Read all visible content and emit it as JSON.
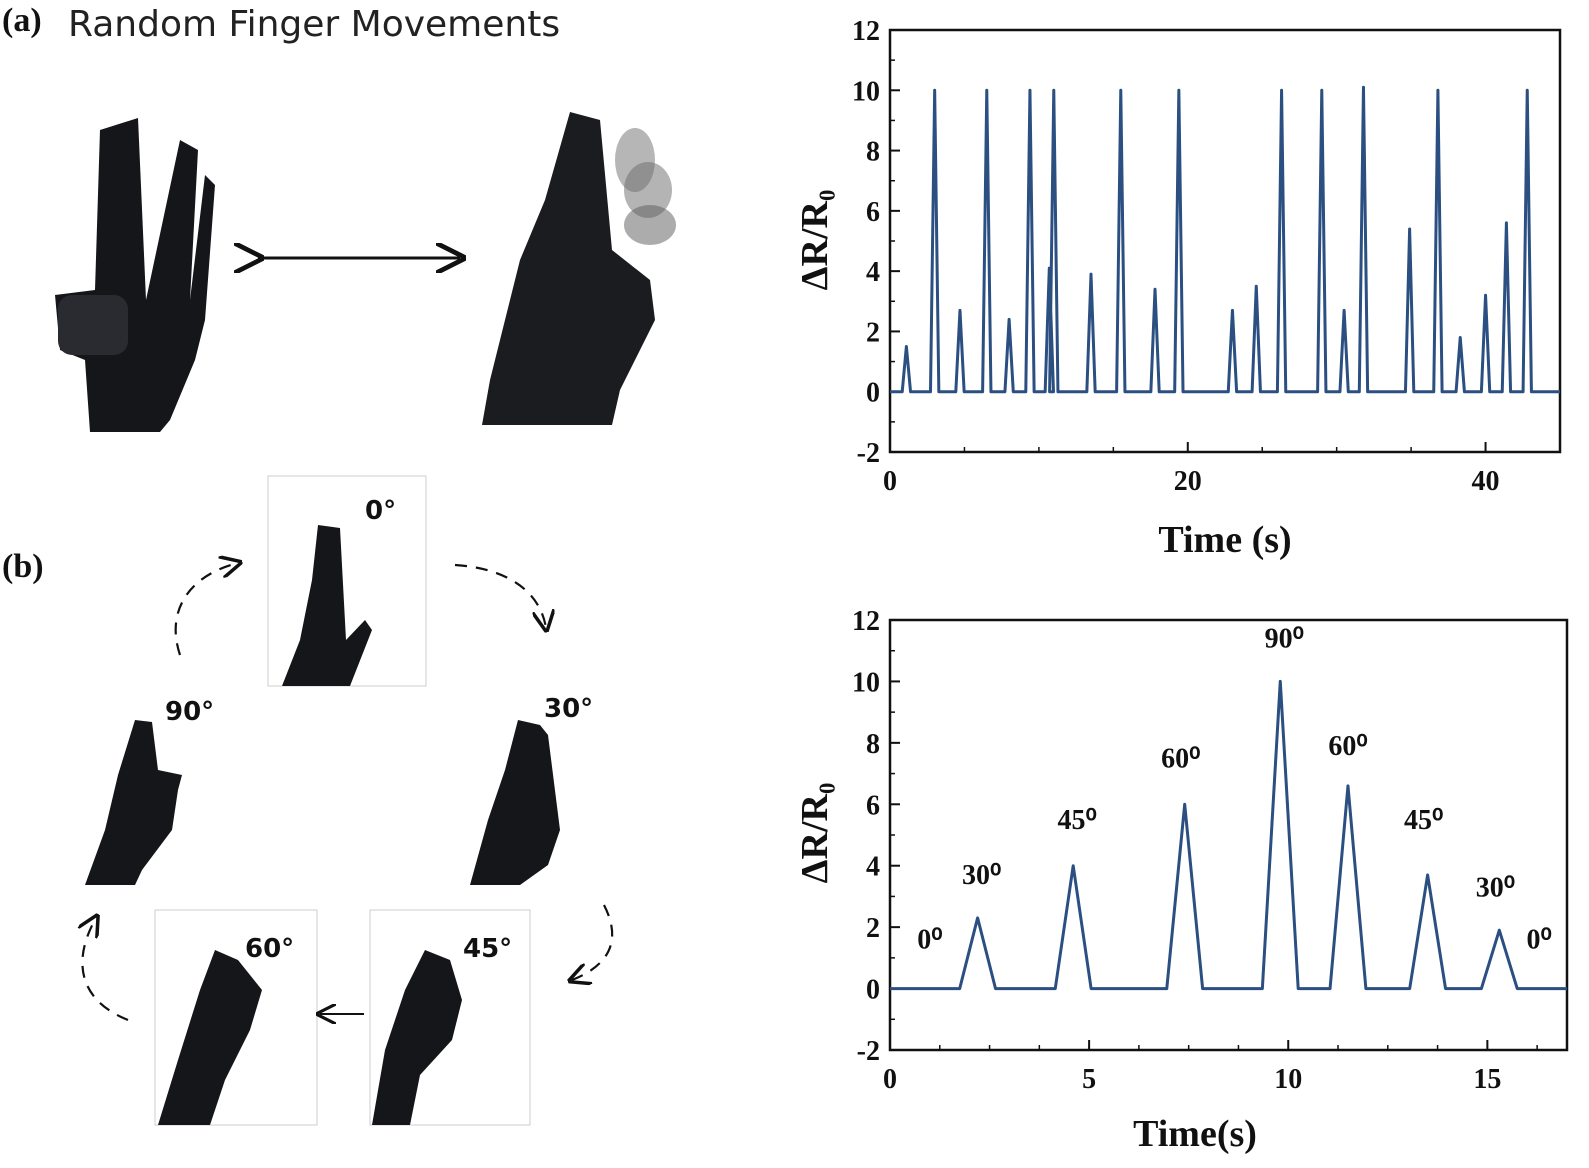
{
  "panel_a": {
    "label": "(a)",
    "title": "Random Finger Movements"
  },
  "panel_b": {
    "label": "(b)",
    "angles": [
      "0°",
      "30°",
      "45°",
      "60°",
      "90°"
    ]
  },
  "colors": {
    "line": "#2b4f81",
    "axis": "#111111",
    "glove": "#15161a"
  },
  "chart_data": [
    {
      "type": "line",
      "title": "",
      "xlabel": "Time (s)",
      "ylabel": "ΔR/R₀",
      "xlim": [
        0,
        45
      ],
      "ylim": [
        -2,
        12
      ],
      "xticks": [
        "0",
        "20",
        "40"
      ],
      "yticks": [
        "-2",
        "0",
        "2",
        "4",
        "6",
        "8",
        "10",
        "12"
      ],
      "series": [
        {
          "name": "",
          "peaks_t": [
            1.1,
            3.0,
            4.7,
            6.5,
            8.0,
            9.4,
            10.7,
            11.0,
            13.5,
            15.5,
            17.8,
            19.4,
            23.0,
            24.6,
            26.3,
            29.0,
            30.5,
            31.8,
            34.9,
            36.8,
            38.3,
            40.0,
            41.4,
            42.8
          ],
          "peaks_v": [
            1.5,
            10.0,
            2.7,
            10.0,
            2.4,
            10.0,
            4.1,
            10.0,
            3.9,
            10.0,
            3.4,
            10.0,
            2.7,
            3.5,
            10.0,
            10.0,
            2.7,
            10.1,
            5.4,
            10.0,
            1.8,
            3.2,
            5.6,
            10.0
          ],
          "baseline": 0
        }
      ]
    },
    {
      "type": "line",
      "title": "",
      "xlabel": "Time(s)",
      "ylabel": "ΔR/R₀",
      "xlim": [
        0,
        17
      ],
      "ylim": [
        -2,
        12
      ],
      "xticks": [
        "0",
        "5",
        "10",
        "15"
      ],
      "yticks": [
        "-2",
        "0",
        "2",
        "4",
        "6",
        "8",
        "10",
        "12"
      ],
      "series": [
        {
          "name": "",
          "peaks_t": [
            2.2,
            4.6,
            7.4,
            9.8,
            11.5,
            13.5,
            15.3
          ],
          "peaks_v": [
            2.3,
            4.0,
            6.0,
            10.0,
            6.6,
            3.7,
            1.9
          ],
          "baseline": 0
        }
      ],
      "annotations": [
        {
          "text": "0⁰",
          "x": 1.0,
          "y": 1.3
        },
        {
          "text": "30⁰",
          "x": 2.3,
          "y": 3.4
        },
        {
          "text": "45⁰",
          "x": 4.7,
          "y": 5.2
        },
        {
          "text": "60⁰",
          "x": 7.3,
          "y": 7.2
        },
        {
          "text": "90⁰",
          "x": 9.9,
          "y": 11.1
        },
        {
          "text": "60⁰",
          "x": 11.5,
          "y": 7.6
        },
        {
          "text": "45⁰",
          "x": 13.4,
          "y": 5.2
        },
        {
          "text": "30⁰",
          "x": 15.2,
          "y": 3.0
        },
        {
          "text": "0⁰",
          "x": 16.3,
          "y": 1.3
        }
      ]
    }
  ]
}
